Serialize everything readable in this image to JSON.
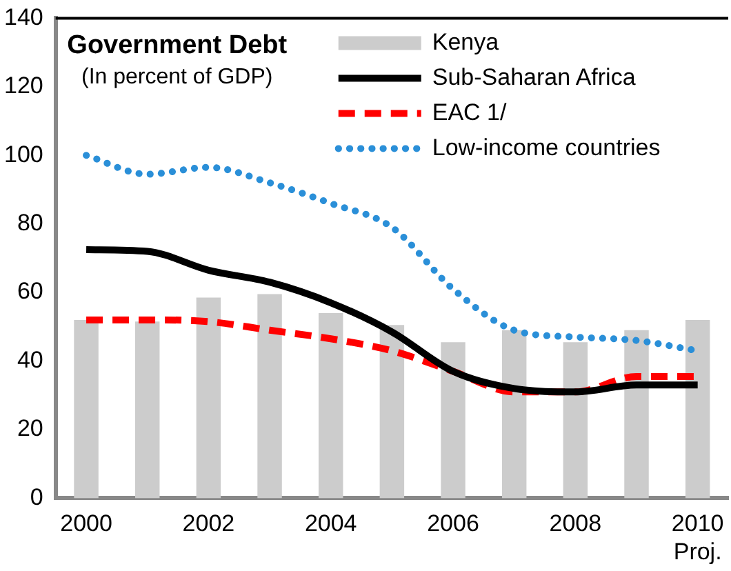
{
  "chart_data": {
    "type": "bar",
    "title": "Government Debt",
    "subtitle": "(In percent of GDP)",
    "categories": [
      "2000",
      null,
      "2002",
      null,
      "2004",
      null,
      "2006",
      null,
      "2008",
      null,
      "2010\nProj."
    ],
    "series": [
      {
        "name": "Kenya",
        "color": "#cccccc",
        "values": [
          52,
          51.5,
          58.5,
          59.5,
          54,
          50.5,
          45.5,
          49,
          45.5,
          49,
          52
        ]
      },
      {
        "name": "Sub-Saharan Africa",
        "type": "line",
        "color": "#000000",
        "line_style": "solid",
        "values": [
          72.5,
          72,
          66.5,
          63,
          57,
          48.5,
          37,
          32,
          31,
          33,
          33
        ]
      },
      {
        "name": "EAC 1/",
        "type": "line",
        "color": "#ff0000",
        "line_style": "dashed",
        "values": [
          52,
          52,
          51.5,
          49,
          46.5,
          43,
          37,
          31,
          31,
          35.5,
          35.5
        ]
      },
      {
        "name": "Low-income countries",
        "type": "line",
        "color": "#2a8fd8",
        "line_style": "dotted",
        "values": [
          100,
          94.5,
          96.5,
          92,
          86,
          79,
          61,
          49,
          47,
          46,
          43
        ]
      }
    ],
    "ylim": [
      0,
      140
    ],
    "yticks": [
      0,
      20,
      40,
      60,
      80,
      100,
      120,
      140
    ],
    "grid": false,
    "legend": "top right",
    "marker": "none"
  }
}
